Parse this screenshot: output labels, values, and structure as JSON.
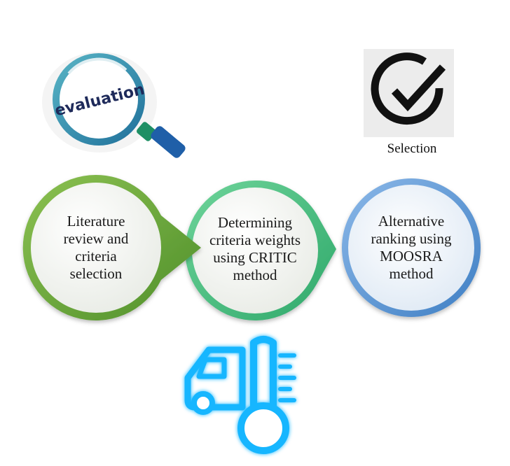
{
  "evaluation_icon": {
    "word": "evaluation",
    "icon": "magnifying-glass-icon"
  },
  "selection_icon": {
    "label": "Selection",
    "icon": "checkmark-circle-icon"
  },
  "steps": [
    {
      "text": "Literature review and criteria selection",
      "color": "#6fae3f"
    },
    {
      "text": "Determining criteria weights using CRITIC method",
      "color": "#3fbf7a"
    },
    {
      "text": "Alternative ranking using MOOSRA method",
      "color": "#5b9bd5"
    }
  ],
  "truck_icon": {
    "icon": "refrigerated-truck-thermometer-icon",
    "color": "#19b6ff"
  }
}
